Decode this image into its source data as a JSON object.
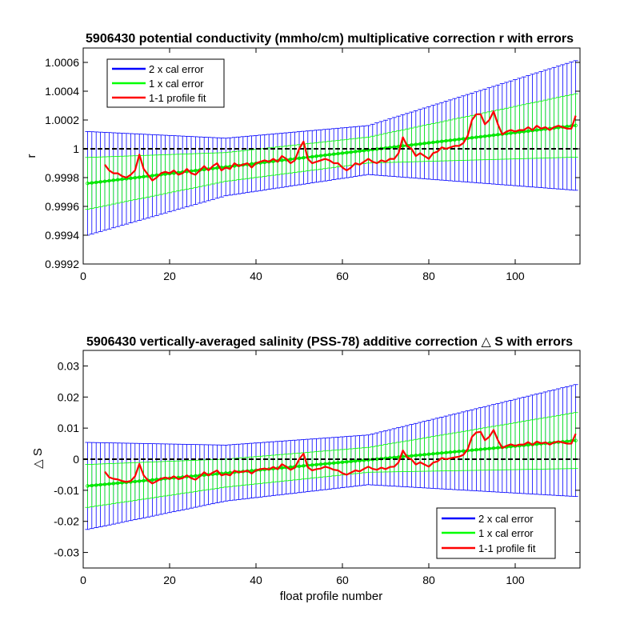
{
  "chart_data": [
    {
      "type": "line",
      "title": "5906430 potential conductivity (mmho/cm) multiplicative correction r with errors",
      "xlabel": "",
      "ylabel": "r",
      "xlim": [
        0,
        115
      ],
      "ylim": [
        0.9992,
        1.0007
      ],
      "xticks": [
        0,
        20,
        40,
        60,
        80,
        100
      ],
      "xtick_labels": [
        "0",
        "20",
        "40",
        "60",
        "80",
        "100"
      ],
      "yticks": [
        0.9992,
        0.9994,
        0.9996,
        0.9998,
        1.0,
        1.0002,
        1.0004,
        1.0006
      ],
      "ytick_labels": [
        "0.9992",
        "0.9994",
        "0.9996",
        "0.9998",
        "1",
        "1.0002",
        "1.0004",
        "1.0006"
      ],
      "legend_position": "top-left",
      "legend": [
        "2 x cal error",
        "1 x cal error",
        "1-1 profile fit"
      ],
      "reference_line": 1.0,
      "errorbars": {
        "x_range": [
          1,
          114
        ],
        "center_start": 0.99976,
        "center_end": 1.000162,
        "err1_pts": [
          [
            1,
            0.00018
          ],
          [
            33,
            0.0001
          ],
          [
            66,
            9e-05
          ],
          [
            114,
            0.00022
          ]
        ],
        "err2_pts": [
          [
            1,
            0.00036
          ],
          [
            33,
            0.0002
          ],
          [
            66,
            0.00017
          ],
          [
            114,
            0.00045
          ]
        ]
      },
      "series": [
        {
          "name": "1-1 profile fit",
          "x": [
            5,
            6,
            7,
            8,
            9,
            10,
            11,
            12,
            13,
            14,
            15,
            16,
            17,
            18,
            19,
            20,
            21,
            22,
            23,
            24,
            25,
            26,
            27,
            28,
            29,
            30,
            31,
            32,
            33,
            34,
            35,
            36,
            37,
            38,
            39,
            40,
            41,
            42,
            43,
            44,
            45,
            46,
            47,
            48,
            49,
            50,
            51,
            52,
            53,
            54,
            55,
            56,
            57,
            58,
            59,
            60,
            61,
            62,
            63,
            64,
            65,
            66,
            67,
            68,
            69,
            70,
            71,
            72,
            73,
            74,
            75,
            76,
            77,
            78,
            79,
            80,
            81,
            82,
            83,
            84,
            85,
            86,
            87,
            88,
            89,
            90,
            91,
            92,
            93,
            94,
            95,
            96,
            97,
            98,
            99,
            100,
            101,
            102,
            103,
            104,
            105,
            106,
            107,
            108,
            109,
            110,
            111,
            112,
            113,
            114
          ],
          "values": [
            0.99989,
            0.99985,
            0.99983,
            0.99983,
            0.99981,
            0.9998,
            0.99982,
            0.99985,
            0.99996,
            0.99986,
            0.99982,
            0.99978,
            0.9998,
            0.99983,
            0.99984,
            0.99983,
            0.99985,
            0.99982,
            0.99983,
            0.99986,
            0.99983,
            0.99982,
            0.99985,
            0.99988,
            0.99985,
            0.99988,
            0.9999,
            0.99985,
            0.99987,
            0.99986,
            0.9999,
            0.99988,
            0.99989,
            0.9999,
            0.99987,
            0.9999,
            0.99991,
            0.99992,
            0.99991,
            0.99993,
            0.99991,
            0.99995,
            0.99993,
            0.9999,
            0.99992,
            1.0,
            1.00005,
            0.99993,
            0.9999,
            0.99991,
            0.99992,
            0.99993,
            0.99992,
            0.9999,
            0.9999,
            0.99987,
            0.99985,
            0.99987,
            0.9999,
            0.99989,
            0.99991,
            0.99993,
            0.99991,
            0.9999,
            0.99992,
            0.99991,
            0.99993,
            0.99993,
            0.99997,
            1.00008,
            1.00002,
            1.0,
            0.99995,
            0.99997,
            0.99995,
            0.99993,
            0.99997,
            0.99998,
            1.00001,
            1.0,
            1.00001,
            1.00002,
            1.00002,
            1.00004,
            1.00009,
            1.0002,
            1.00024,
            1.00024,
            1.00017,
            1.0002,
            1.00026,
            1.00017,
            1.0001,
            1.00012,
            1.00013,
            1.00012,
            1.00013,
            1.00013,
            1.00015,
            1.00013,
            1.00016,
            1.00014,
            1.00015,
            1.00013,
            1.00015,
            1.00016,
            1.00015,
            1.00014,
            1.00014,
            1.00023
          ]
        }
      ]
    },
    {
      "type": "line",
      "title": "5906430 vertically-averaged salinity (PSS-78) additive correction △ S with errors",
      "xlabel": "float profile number",
      "ylabel": "△ S",
      "xlim": [
        0,
        115
      ],
      "ylim": [
        -0.035,
        0.035
      ],
      "xticks": [
        0,
        20,
        40,
        60,
        80,
        100
      ],
      "xtick_labels": [
        "0",
        "20",
        "40",
        "60",
        "80",
        "100"
      ],
      "yticks": [
        -0.03,
        -0.02,
        -0.01,
        0,
        0.01,
        0.02,
        0.03
      ],
      "ytick_labels": [
        "-0.03",
        "-0.02",
        "-0.01",
        "0",
        "0.01",
        "0.02",
        "0.03"
      ],
      "legend_position": "bottom-right",
      "legend": [
        "2 x cal error",
        "1 x cal error",
        "1-1 profile fit"
      ],
      "reference_line": 0,
      "errorbars": {
        "x_range": [
          1,
          114
        ],
        "center_start": -0.0086,
        "center_end": 0.006,
        "err1_pts": [
          [
            1,
            0.0069
          ],
          [
            33,
            0.0045
          ],
          [
            66,
            0.004
          ],
          [
            114,
            0.009
          ]
        ],
        "err2_pts": [
          [
            1,
            0.014
          ],
          [
            33,
            0.009
          ],
          [
            66,
            0.008
          ],
          [
            114,
            0.018
          ]
        ]
      },
      "series": [
        {
          "name": "1-1 profile fit",
          "x": [
            5,
            6,
            7,
            8,
            9,
            10,
            11,
            12,
            13,
            14,
            15,
            16,
            17,
            18,
            19,
            20,
            21,
            22,
            23,
            24,
            25,
            26,
            27,
            28,
            29,
            30,
            31,
            32,
            33,
            34,
            35,
            36,
            37,
            38,
            39,
            40,
            41,
            42,
            43,
            44,
            45,
            46,
            47,
            48,
            49,
            50,
            51,
            52,
            53,
            54,
            55,
            56,
            57,
            58,
            59,
            60,
            61,
            62,
            63,
            64,
            65,
            66,
            67,
            68,
            69,
            70,
            71,
            72,
            73,
            74,
            75,
            76,
            77,
            78,
            79,
            80,
            81,
            82,
            83,
            84,
            85,
            86,
            87,
            88,
            89,
            90,
            91,
            92,
            93,
            94,
            95,
            96,
            97,
            98,
            99,
            100,
            101,
            102,
            103,
            104,
            105,
            106,
            107,
            108,
            109,
            110,
            111,
            112,
            113,
            114
          ],
          "values": [
            -0.004,
            -0.0058,
            -0.0063,
            -0.0065,
            -0.007,
            -0.0073,
            -0.007,
            -0.0055,
            -0.0015,
            -0.0052,
            -0.0068,
            -0.0078,
            -0.0071,
            -0.0063,
            -0.0059,
            -0.0063,
            -0.0055,
            -0.0064,
            -0.0061,
            -0.0052,
            -0.0061,
            -0.0066,
            -0.0055,
            -0.0042,
            -0.0052,
            -0.0043,
            -0.0036,
            -0.0052,
            -0.0048,
            -0.0052,
            -0.0037,
            -0.0042,
            -0.004,
            -0.0037,
            -0.0046,
            -0.0036,
            -0.0032,
            -0.003,
            -0.0033,
            -0.0025,
            -0.0032,
            -0.0016,
            -0.0024,
            -0.0034,
            -0.0027,
            0.0,
            0.0018,
            -0.0026,
            -0.0036,
            -0.0032,
            -0.003,
            -0.0024,
            -0.0028,
            -0.0034,
            -0.0036,
            -0.0045,
            -0.005,
            -0.0043,
            -0.0036,
            -0.0039,
            -0.0031,
            -0.0024,
            -0.0031,
            -0.0034,
            -0.0027,
            -0.0032,
            -0.0025,
            -0.0024,
            -0.001,
            0.0028,
            0.0006,
            -0.0001,
            -0.0017,
            -0.001,
            -0.0017,
            -0.0024,
            -0.0011,
            -0.0007,
            0.0004,
            0.0,
            0.0003,
            0.0006,
            0.0008,
            0.0014,
            0.0032,
            0.0072,
            0.0086,
            0.0088,
            0.0061,
            0.0072,
            0.0094,
            0.0061,
            0.0036,
            0.0043,
            0.0048,
            0.0043,
            0.0047,
            0.0047,
            0.0055,
            0.0046,
            0.0057,
            0.0051,
            0.0054,
            0.0047,
            0.0054,
            0.0057,
            0.0054,
            0.005,
            0.005,
            0.0082
          ]
        }
      ]
    }
  ]
}
